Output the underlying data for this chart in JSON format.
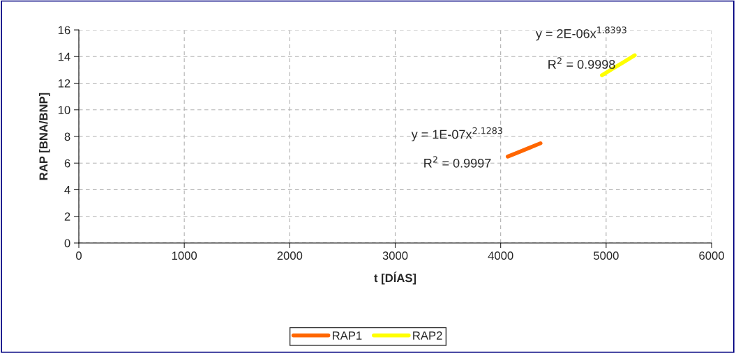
{
  "chart_data": {
    "type": "line",
    "xlabel": "t [DÍAS]",
    "ylabel": "RAP [BNA/BNP]",
    "xlim": [
      0,
      6000
    ],
    "xticks": [
      0,
      1000,
      2000,
      3000,
      4000,
      5000,
      6000
    ],
    "ylim": [
      0,
      16
    ],
    "yticks": [
      0,
      2,
      4,
      6,
      8,
      10,
      12,
      14,
      16
    ],
    "grid": true,
    "legend": "bottom",
    "marker": "none",
    "line_style": "solid",
    "series": [
      {
        "name": "RAP1",
        "color": "#ff6600",
        "x": [
          4067,
          4170,
          4275,
          4378
        ],
        "values": [
          6.49,
          6.82,
          7.16,
          7.49
        ]
      },
      {
        "name": "RAP2",
        "color": "#ffff00",
        "x": [
          4960,
          5065,
          5170,
          5271
        ],
        "values": [
          12.6,
          13.1,
          13.6,
          14.1
        ]
      }
    ],
    "annotations": [
      "y = 1E-07x$^{2.1283}$",
      "R$^{2}$ = 0.9997",
      "y = 2E-06x$^{1.8393}$",
      "R$^{2}$ = 0.9998"
    ]
  }
}
